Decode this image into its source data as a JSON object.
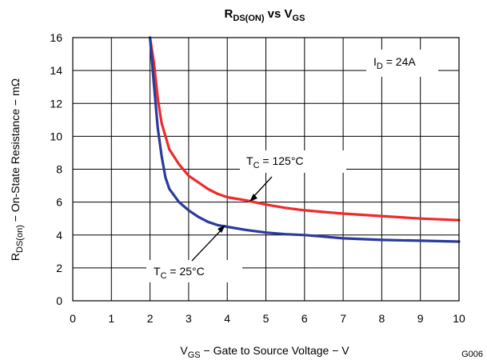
{
  "chart_data": {
    "type": "line",
    "title": "RDS(ON) vs VGS",
    "title_parts": [
      "R",
      "DS(ON)",
      " vs V",
      "GS"
    ],
    "xlabel": "VGS − Gate to Source Voltage − V",
    "xlabel_parts": [
      "V",
      "GS",
      " − Gate to Source Voltage − V"
    ],
    "ylabel": "RDS(on) − On-State Resistance − mΩ",
    "ylabel_parts": [
      "R",
      "DS(on)",
      " − On-State Resistance − mΩ"
    ],
    "xlim": [
      0,
      10
    ],
    "ylim": [
      0,
      16
    ],
    "x_ticks": [
      "0",
      "1",
      "2",
      "3",
      "4",
      "5",
      "6",
      "7",
      "8",
      "9",
      "10"
    ],
    "y_ticks": [
      "0",
      "2",
      "4",
      "6",
      "8",
      "10",
      "12",
      "14",
      "16"
    ],
    "grid": true,
    "condition_label": "ID = 24A",
    "condition_parts": [
      "I",
      "D",
      " = 24A"
    ],
    "figure_code": "G006",
    "series": [
      {
        "name": "TC = 125°C",
        "label_parts": [
          "T",
          "C",
          " = 125°C"
        ],
        "color": "#ee2a2a",
        "x": [
          2.0,
          2.1,
          2.2,
          2.3,
          2.5,
          2.75,
          3.0,
          3.25,
          3.5,
          3.75,
          4.0,
          4.5,
          5.0,
          5.5,
          6.0,
          6.5,
          7.0,
          8.0,
          9.0,
          10.0
        ],
        "y": [
          16.0,
          14.5,
          12.3,
          10.8,
          9.2,
          8.3,
          7.6,
          7.2,
          6.8,
          6.5,
          6.3,
          6.1,
          5.85,
          5.65,
          5.5,
          5.4,
          5.3,
          5.15,
          5.0,
          4.9
        ]
      },
      {
        "name": "TC = 25°C",
        "label_parts": [
          "T",
          "C",
          " = 25°C"
        ],
        "color": "#2b3a9c",
        "x": [
          2.0,
          2.1,
          2.2,
          2.3,
          2.4,
          2.5,
          2.75,
          3.0,
          3.25,
          3.5,
          3.75,
          4.0,
          4.5,
          5.0,
          5.5,
          6.0,
          6.5,
          7.0,
          8.0,
          9.0,
          10.0
        ],
        "y": [
          16.0,
          13.2,
          10.5,
          8.8,
          7.5,
          6.8,
          6.0,
          5.5,
          5.1,
          4.8,
          4.6,
          4.5,
          4.3,
          4.15,
          4.05,
          4.0,
          3.9,
          3.8,
          3.7,
          3.65,
          3.6
        ]
      }
    ]
  }
}
